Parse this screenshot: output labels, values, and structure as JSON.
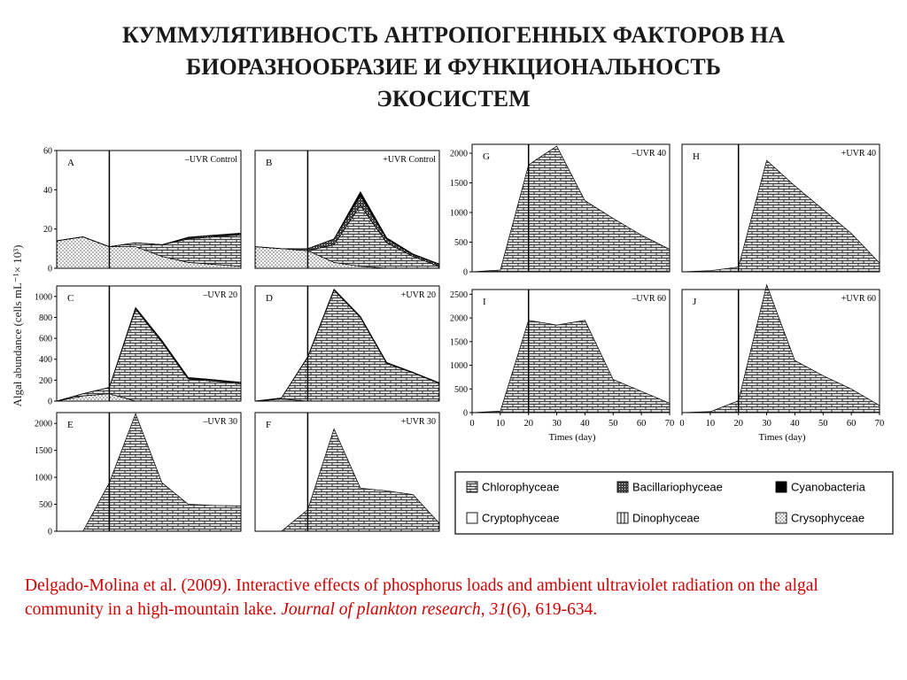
{
  "slide": {
    "title_lines": [
      "КУММУЛЯТИВНОСТЬ АНТРОПОГЕННЫХ ФАКТОРОВ НА",
      "БИОРАЗНООБРАЗИЕ И ФУНКЦИОНАЛЬНОСТЬ",
      "ЭКОСИСТЕМ"
    ],
    "citation": {
      "part1": "Delgado-Molina et al. (2009). Interactive effects of phosphorus loads and ambient ultraviolet radiation on the algal community in a high-mountain lake. ",
      "journal": "Journal of plankton research",
      "sep": ", ",
      "volume": "31",
      "rest": "(6), 619-634."
    }
  },
  "colors": {
    "title": "#1a1a1a",
    "citation": "#d00000"
  },
  "chart_data": [
    {
      "type": "area",
      "panel": "A",
      "condition": "–UVR Control",
      "ylim": [
        0,
        60
      ],
      "yticks": [
        0,
        20,
        40,
        60
      ],
      "x": [
        0,
        10,
        20,
        30,
        40,
        50,
        60,
        70
      ],
      "series": [
        {
          "name": "Crysophyceae",
          "values": [
            14,
            16,
            11,
            11,
            6,
            3,
            2,
            1
          ]
        },
        {
          "name": "Chlorophyceae",
          "values": [
            0,
            0,
            0,
            2,
            6,
            12,
            14,
            16
          ]
        },
        {
          "name": "Bacillariophyceae",
          "values": [
            0,
            0,
            0,
            0,
            0,
            0.6,
            0.6,
            0.6
          ]
        },
        {
          "name": "Cyanobacteria",
          "values": [
            0,
            0,
            0,
            0,
            0,
            0.3,
            0.3,
            0.3
          ]
        }
      ]
    },
    {
      "type": "area",
      "panel": "B",
      "condition": "+UVR Control",
      "ylim": [
        0,
        60
      ],
      "yticks": [
        0,
        20,
        40,
        60
      ],
      "x": [
        0,
        10,
        20,
        30,
        40,
        50,
        60,
        70
      ],
      "series": [
        {
          "name": "Crysophyceae",
          "values": [
            11,
            10,
            9,
            3,
            1,
            0,
            0,
            0
          ]
        },
        {
          "name": "Chlorophyceae",
          "values": [
            0,
            0,
            0,
            9,
            31,
            13,
            6,
            1
          ]
        },
        {
          "name": "Bacillariophyceae",
          "values": [
            0,
            0,
            1,
            3,
            5,
            2,
            1,
            1
          ]
        },
        {
          "name": "Cyanobacteria",
          "values": [
            0,
            0,
            0,
            0,
            2,
            0.5,
            0.3,
            0.2
          ]
        }
      ]
    },
    {
      "type": "area",
      "panel": "C",
      "condition": "–UVR 20",
      "ylim": [
        0,
        1100
      ],
      "yticks": [
        0,
        200,
        400,
        600,
        800,
        1000
      ],
      "x": [
        0,
        10,
        20,
        30,
        40,
        50,
        60,
        70
      ],
      "series": [
        {
          "name": "Crysophyceae",
          "values": [
            0,
            50,
            70,
            0,
            0,
            0,
            0,
            0
          ]
        },
        {
          "name": "Chlorophyceae",
          "values": [
            0,
            20,
            60,
            880,
            560,
            210,
            190,
            165
          ]
        },
        {
          "name": "Bacillariophyceae",
          "values": [
            0,
            0,
            0,
            10,
            15,
            10,
            10,
            10
          ]
        },
        {
          "name": "Cyanobacteria",
          "values": [
            0,
            0,
            0,
            5,
            5,
            5,
            5,
            5
          ]
        }
      ]
    },
    {
      "type": "area",
      "panel": "D",
      "condition": "+UVR 20",
      "ylim": [
        0,
        1100
      ],
      "yticks": [
        0,
        200,
        400,
        600,
        800,
        1000
      ],
      "x": [
        0,
        10,
        20,
        30,
        40,
        50,
        60,
        70
      ],
      "series": [
        {
          "name": "Crysophyceae",
          "values": [
            0,
            20,
            0,
            0,
            0,
            0,
            0,
            0
          ]
        },
        {
          "name": "Chlorophyceae",
          "values": [
            0,
            10,
            420,
            1060,
            800,
            360,
            270,
            170
          ]
        },
        {
          "name": "Bacillariophyceae",
          "values": [
            0,
            0,
            5,
            10,
            10,
            10,
            5,
            5
          ]
        }
      ]
    },
    {
      "type": "area",
      "panel": "E",
      "condition": "–UVR 30",
      "ylim": [
        0,
        2200
      ],
      "yticks": [
        0,
        500,
        1000,
        1500,
        2000
      ],
      "x": [
        0,
        10,
        20,
        30,
        40,
        50,
        60,
        70
      ],
      "series": [
        {
          "name": "Chlorophyceae",
          "values": [
            0,
            0,
            900,
            2180,
            900,
            500,
            480,
            470
          ]
        }
      ]
    },
    {
      "type": "area",
      "panel": "F",
      "condition": "+UVR 30",
      "ylim": [
        0,
        2200
      ],
      "yticks": [
        0,
        500,
        1000,
        1500,
        2000
      ],
      "x": [
        0,
        10,
        20,
        30,
        40,
        50,
        60,
        70
      ],
      "series": [
        {
          "name": "Chlorophyceae",
          "values": [
            0,
            0,
            400,
            1900,
            800,
            750,
            680,
            150
          ]
        }
      ]
    },
    {
      "type": "area",
      "panel": "G",
      "condition": "–UVR 40",
      "ylim": [
        0,
        2150
      ],
      "yticks": [
        0,
        500,
        1000,
        1500,
        2000
      ],
      "x": [
        0,
        10,
        20,
        23,
        30,
        40,
        50,
        60,
        70
      ],
      "series": [
        {
          "name": "Chlorophyceae",
          "values": [
            0,
            30,
            1800,
            1900,
            2120,
            1200,
            900,
            620,
            380
          ]
        }
      ]
    },
    {
      "type": "area",
      "panel": "H",
      "condition": "+UVR 40",
      "ylim": [
        0,
        2150
      ],
      "yticks": [
        0,
        500,
        1000,
        1500,
        2000
      ],
      "x": [
        0,
        10,
        20,
        30,
        40,
        50,
        60,
        70
      ],
      "series": [
        {
          "name": "Chlorophyceae",
          "values": [
            0,
            20,
            80,
            1880,
            1450,
            1050,
            650,
            150
          ]
        }
      ]
    },
    {
      "type": "area",
      "panel": "I",
      "condition": "–UVR 60",
      "ylim": [
        0,
        2600
      ],
      "yticks": [
        0,
        500,
        1000,
        1500,
        2000,
        2500
      ],
      "x": [
        0,
        10,
        20,
        30,
        40,
        50,
        60,
        70
      ],
      "series": [
        {
          "name": "Chlorophyceae",
          "values": [
            0,
            30,
            1950,
            1850,
            1950,
            700,
            450,
            200
          ]
        }
      ]
    },
    {
      "type": "area",
      "panel": "J",
      "condition": "+UVR 60",
      "ylim": [
        0,
        2600
      ],
      "yticks": [
        0,
        500,
        1000,
        1500,
        2000,
        2500
      ],
      "x": [
        0,
        10,
        20,
        30,
        40,
        50,
        60,
        70
      ],
      "series": [
        {
          "name": "Chlorophyceae",
          "values": [
            0,
            20,
            250,
            2700,
            1100,
            780,
            500,
            150
          ]
        }
      ]
    }
  ],
  "figure": {
    "ylabel": "Algal abundance (cells mL⁻¹× 10³)",
    "xlabel": "Times (day)",
    "xticks": [
      "0",
      "10",
      "20",
      "30",
      "40",
      "50",
      "60",
      "70"
    ],
    "legend": [
      {
        "name": "Chlorophyceae",
        "pattern": "brick"
      },
      {
        "name": "Bacillariophyceae",
        "pattern": "dense"
      },
      {
        "name": "Cyanobacteria",
        "pattern": "black"
      },
      {
        "name": "Cryptophyceae",
        "pattern": "blank"
      },
      {
        "name": "Dinophyceae",
        "pattern": "vlines"
      },
      {
        "name": "Crysophyceae",
        "pattern": "dots"
      }
    ]
  }
}
